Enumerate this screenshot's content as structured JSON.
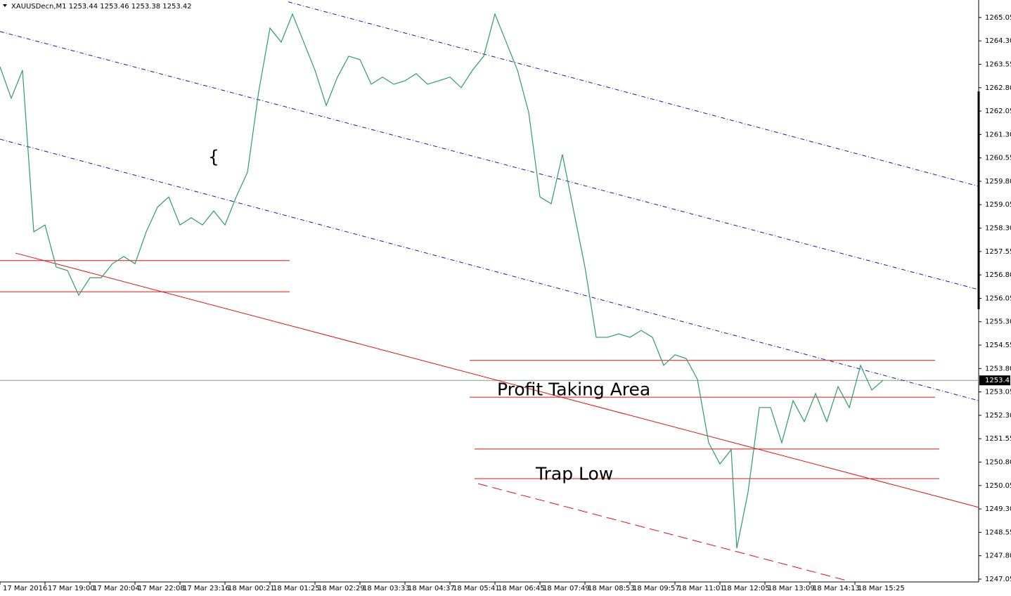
{
  "chart_data": {
    "type": "line",
    "title": "XAUUSDecn,M1  1253.44 1253.46 1253.38 1253.42",
    "xlim": [
      0,
      1392
    ],
    "ylim": [
      1246.96,
      1265.61
    ],
    "xticks": [
      {
        "value": 0,
        "label": "17 Mar 2016"
      },
      {
        "value": 64,
        "label": "17 Mar 19:00"
      },
      {
        "value": 128,
        "label": "17 Mar 20:04"
      },
      {
        "value": 192,
        "label": "17 Mar 22:08"
      },
      {
        "value": 256,
        "label": "17 Mar 23:16"
      },
      {
        "value": 320,
        "label": "18 Mar 00:21"
      },
      {
        "value": 384,
        "label": "18 Mar 01:25"
      },
      {
        "value": 448,
        "label": "18 Mar 02:29"
      },
      {
        "value": 512,
        "label": "18 Mar 03:33"
      },
      {
        "value": 576,
        "label": "18 Mar 04:37"
      },
      {
        "value": 640,
        "label": "18 Mar 05:41"
      },
      {
        "value": 704,
        "label": "18 Mar 06:45"
      },
      {
        "value": 768,
        "label": "18 Mar 07:49"
      },
      {
        "value": 832,
        "label": "18 Mar 08:53"
      },
      {
        "value": 896,
        "label": "18 Mar 09:57"
      },
      {
        "value": 960,
        "label": "18 Mar 11:01"
      },
      {
        "value": 1024,
        "label": "18 Mar 12:05"
      },
      {
        "value": 1088,
        "label": "18 Mar 13:09"
      },
      {
        "value": 1152,
        "label": "18 Mar 14:13"
      },
      {
        "value": 1216,
        "label": "18 Mar 15:25"
      }
    ],
    "yticks": [
      1247.05,
      {
        "value": 1247.8,
        "label": "1247.80"
      },
      1248.55,
      {
        "value": 1249.3,
        "label": "1249.30"
      },
      1250.05,
      {
        "value": 1250.8,
        "label": "1250.80"
      },
      1251.55,
      {
        "value": 1252.3,
        "label": "1252.30"
      },
      1253.05,
      {
        "value": 1253.8,
        "label": "1253.80"
      },
      1254.55,
      {
        "value": 1255.3,
        "label": "1255.30"
      },
      1256.05,
      {
        "value": 1256.8,
        "label": "1256.80"
      },
      1257.55,
      {
        "value": 1258.3,
        "label": "1258.30"
      },
      1259.05,
      {
        "value": 1259.8,
        "label": "1259.80"
      },
      1260.55,
      {
        "value": 1261.3,
        "label": "1261.30"
      },
      1262.05,
      {
        "value": 1262.8,
        "label": "1262.80"
      },
      1263.55,
      {
        "value": 1264.3,
        "label": "1264.30"
      },
      1265.05
    ],
    "series": [
      {
        "name": "XAUUSDecn",
        "color": "#2e9c6a",
        "x": [
          0,
          16,
          32,
          48,
          64,
          80,
          96,
          112,
          128,
          144,
          160,
          176,
          192,
          208,
          224,
          240,
          256,
          272,
          288,
          304,
          320,
          336,
          352,
          368,
          384,
          400,
          416,
          432,
          448,
          464,
          480,
          496,
          512,
          528,
          544,
          560,
          576,
          592,
          608,
          624,
          640,
          656,
          672,
          688,
          704,
          720,
          736,
          752,
          768,
          784,
          800,
          816,
          832,
          848,
          864,
          880,
          896,
          912,
          928,
          944,
          960,
          976,
          992,
          1008,
          1024,
          1040,
          1048,
          1064,
          1080,
          1096,
          1112,
          1128,
          1144,
          1160,
          1176,
          1192,
          1208,
          1224,
          1240,
          1256
        ],
        "values": [
          1263.47,
          1262.46,
          1263.36,
          1258.18,
          1258.4,
          1257.05,
          1256.94,
          1256.15,
          1256.71,
          1256.71,
          1257.16,
          1257.39,
          1257.16,
          1258.18,
          1258.97,
          1259.3,
          1258.4,
          1258.63,
          1258.4,
          1258.85,
          1258.4,
          1259.3,
          1260.09,
          1262.68,
          1264.71,
          1264.26,
          1265.16,
          1264.26,
          1263.36,
          1262.23,
          1263.14,
          1263.81,
          1263.7,
          1262.91,
          1263.14,
          1262.91,
          1263.02,
          1263.25,
          1262.91,
          1263.02,
          1263.14,
          1262.8,
          1263.36,
          1263.81,
          1265.16,
          1264.26,
          1263.36,
          1262.01,
          1259.3,
          1259.08,
          1260.66,
          1258.85,
          1257.05,
          1254.8,
          1254.8,
          1254.91,
          1254.8,
          1255.02,
          1254.8,
          1253.9,
          1254.24,
          1254.12,
          1253.45,
          1251.42,
          1250.74,
          1251.2,
          1248.04,
          1249.84,
          1252.55,
          1252.55,
          1251.42,
          1252.77,
          1252.1,
          1253.0,
          1252.1,
          1253.22,
          1252.55,
          1253.9,
          1253.11,
          1253.42
        ]
      }
    ],
    "current_price": 1253.42,
    "lines": [
      {
        "x": [
          410,
          1392
        ],
        "y": [
          1265.55,
          1259.64
        ],
        "color": "#1a1aa0",
        "style": "dashdot"
      },
      {
        "x": [
          0,
          1392
        ],
        "y": [
          1264.6,
          1256.33
        ],
        "color": "#1a1aa0",
        "style": "dashdot"
      },
      {
        "x": [
          0,
          1392
        ],
        "y": [
          1261.15,
          1252.77
        ],
        "color": "#1a1aa0",
        "style": "dashdot"
      },
      {
        "x": [
          22,
          1392
        ],
        "y": [
          1257.5,
          1249.35
        ],
        "color": "#e01010",
        "style": "solid"
      },
      {
        "x": [
          680,
          1205
        ],
        "y": [
          1250.11,
          1247.0
        ],
        "color": "#e01010",
        "style": "dashed"
      },
      {
        "x": [
          0,
          412
        ],
        "y": [
          1257.26,
          1257.26
        ],
        "color": "#e01010",
        "style": "solid"
      },
      {
        "x": [
          0,
          412
        ],
        "y": [
          1256.26,
          1256.26
        ],
        "color": "#e01010",
        "style": "solid"
      },
      {
        "x": [
          668,
          1330
        ],
        "y": [
          1254.06,
          1254.06
        ],
        "color": "#e01010",
        "style": "solid"
      },
      {
        "x": [
          668,
          1330
        ],
        "y": [
          1252.88,
          1252.88
        ],
        "color": "#e01010",
        "style": "solid"
      },
      {
        "x": [
          675,
          1336
        ],
        "y": [
          1251.22,
          1251.22
        ],
        "color": "#e01010",
        "style": "solid"
      },
      {
        "x": [
          675,
          1336
        ],
        "y": [
          1250.27,
          1250.27
        ],
        "color": "#e01010",
        "style": "solid"
      }
    ],
    "annotations": [
      {
        "text": "Profit Taking Area",
        "x": 707,
        "y": 1253.1,
        "color": "#e01010"
      },
      {
        "text": "Trap Low",
        "x": 762,
        "y": 1250.4,
        "color": "#e01010"
      },
      {
        "text": "{",
        "x": 296,
        "y": 1260.55,
        "color": "#1a1aa0"
      }
    ]
  }
}
